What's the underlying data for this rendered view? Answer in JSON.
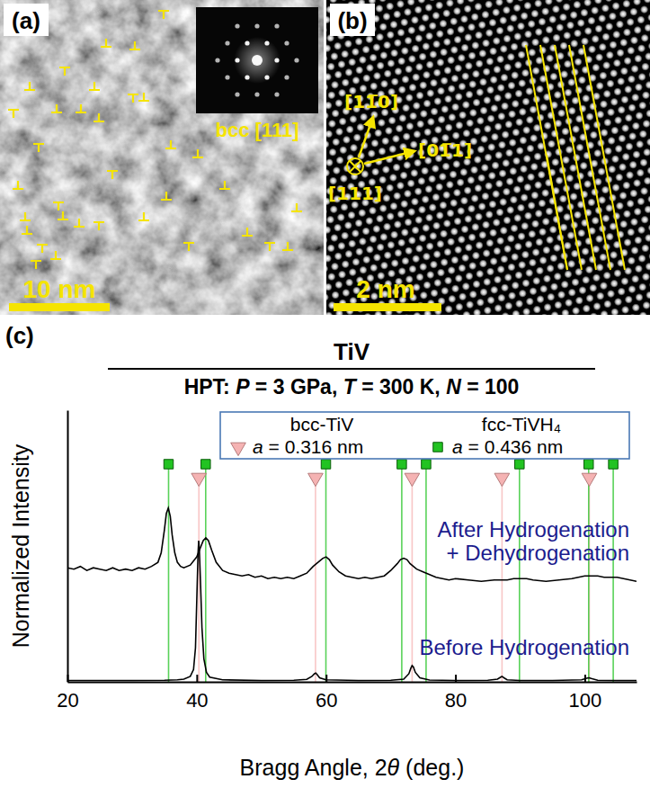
{
  "chart_data": {
    "type": "line",
    "panel_label": "(c)",
    "title": "TiV",
    "subtitle": "HPT: P = 3 GPa, T = 300 K, N = 100",
    "xlabel": "Bragg Angle, 2θ (deg.)",
    "ylabel": "Normalized Intensity",
    "xlim": [
      20,
      108
    ],
    "xticks": [
      20,
      40,
      60,
      80,
      100
    ],
    "ylim": [
      0,
      2
    ],
    "tick_labels": "x",
    "legend": "top-right",
    "series": [
      {
        "name": "Before Hydrogenation",
        "type": "line",
        "color": "#000000",
        "x": [
          20,
          25,
          30,
          35,
          37,
          38,
          39,
          39.5,
          39.8,
          40.0,
          40.2,
          40.3,
          40.4,
          40.6,
          40.8,
          41.1,
          41.5,
          42,
          44,
          50,
          55,
          57,
          57.8,
          58.2,
          58.4,
          58.6,
          59,
          60,
          65,
          70,
          72,
          72.8,
          73.1,
          73.3,
          73.5,
          73.8,
          74.5,
          76,
          80,
          85,
          86.5,
          87,
          87.2,
          87.5,
          88,
          90,
          95,
          99.5,
          100.4,
          100.7,
          101,
          102,
          105,
          108
        ],
        "values": [
          0.01,
          0.01,
          0.01,
          0.012,
          0.015,
          0.02,
          0.04,
          0.09,
          0.25,
          0.6,
          0.95,
          1.04,
          0.98,
          0.7,
          0.4,
          0.17,
          0.07,
          0.035,
          0.015,
          0.01,
          0.012,
          0.018,
          0.04,
          0.06,
          0.065,
          0.055,
          0.03,
          0.015,
          0.01,
          0.012,
          0.02,
          0.06,
          0.1,
          0.12,
          0.11,
          0.07,
          0.03,
          0.013,
          0.01,
          0.012,
          0.02,
          0.035,
          0.04,
          0.03,
          0.015,
          0.01,
          0.01,
          0.015,
          0.028,
          0.03,
          0.025,
          0.012,
          0.01,
          0.01
        ]
      },
      {
        "name": "After Hydrogenation + Dehydrogenation",
        "type": "line",
        "color": "#000000",
        "x": [
          20,
          21,
          22,
          23,
          24,
          25,
          26,
          27,
          28,
          29,
          30,
          31,
          32,
          33,
          34,
          34.5,
          35,
          35.3,
          35.6,
          35.9,
          36.2,
          36.6,
          37,
          37.5,
          38,
          39,
          40,
          40.5,
          41,
          41.4,
          41.8,
          42.3,
          43,
          44,
          45,
          46,
          47,
          48,
          49,
          50,
          51,
          52,
          53,
          54,
          55,
          56,
          57,
          58,
          59,
          59.5,
          60,
          60.5,
          61,
          62,
          63,
          64,
          65,
          66,
          67,
          68,
          69,
          70,
          71,
          71.5,
          72,
          72.5,
          73,
          74,
          75,
          75.5,
          76,
          77,
          78,
          79,
          80,
          82,
          84,
          86,
          88,
          89,
          90,
          91,
          92,
          94,
          96,
          98,
          99,
          100,
          101,
          102,
          103,
          104,
          105,
          106,
          107,
          108
        ],
        "values": [
          0.84,
          0.83,
          0.85,
          0.82,
          0.84,
          0.83,
          0.82,
          0.84,
          0.82,
          0.83,
          0.82,
          0.84,
          0.83,
          0.85,
          0.88,
          0.95,
          1.12,
          1.24,
          1.28,
          1.22,
          1.08,
          0.95,
          0.88,
          0.85,
          0.84,
          0.86,
          0.92,
          0.98,
          1.04,
          1.06,
          1.04,
          0.97,
          0.88,
          0.82,
          0.8,
          0.79,
          0.78,
          0.79,
          0.77,
          0.78,
          0.76,
          0.77,
          0.76,
          0.77,
          0.76,
          0.78,
          0.8,
          0.85,
          0.89,
          0.91,
          0.92,
          0.9,
          0.86,
          0.81,
          0.78,
          0.77,
          0.76,
          0.77,
          0.76,
          0.77,
          0.78,
          0.82,
          0.87,
          0.9,
          0.91,
          0.9,
          0.87,
          0.83,
          0.81,
          0.8,
          0.79,
          0.77,
          0.76,
          0.75,
          0.76,
          0.75,
          0.74,
          0.75,
          0.75,
          0.76,
          0.76,
          0.76,
          0.75,
          0.74,
          0.75,
          0.76,
          0.77,
          0.78,
          0.78,
          0.78,
          0.77,
          0.77,
          0.77,
          0.76,
          0.75,
          0.74
        ]
      },
      {
        "name": "bcc-TiV",
        "type": "reference",
        "marker": "triangle-down",
        "color": "#f5b3b3",
        "lattice_parameter": {
          "symbol": "a",
          "value": 0.316,
          "unit": "nm"
        },
        "x": [
          40.33,
          58.36,
          73.3,
          87.2,
          100.7
        ]
      },
      {
        "name": "fcc-TiVH₄",
        "type": "reference",
        "marker": "square",
        "color": "#22c322",
        "lattice_parameter": {
          "symbol": "a",
          "value": 0.436,
          "unit": "nm"
        },
        "x": [
          35.64,
          41.38,
          59.97,
          71.7,
          75.46,
          89.9,
          100.6,
          104.4
        ]
      }
    ]
  },
  "images": [
    {
      "label": "(a)",
      "scale_bar": "10 nm",
      "inset_label": "bcc [111]"
    },
    {
      "label": "(b)",
      "scale_bar": "2 nm",
      "directions": [
        "[11̅0]",
        "[01̅1]",
        "[111]"
      ]
    }
  ]
}
